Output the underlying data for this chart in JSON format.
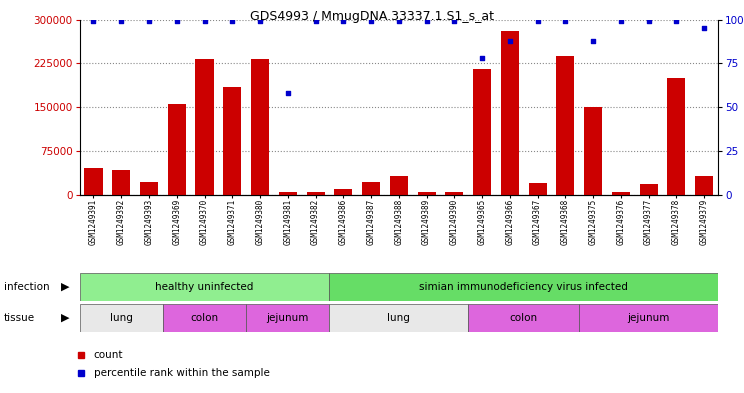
{
  "title": "GDS4993 / MmugDNA.33337.1.S1_s_at",
  "samples": [
    "GSM1249391",
    "GSM1249392",
    "GSM1249393",
    "GSM1249369",
    "GSM1249370",
    "GSM1249371",
    "GSM1249380",
    "GSM1249381",
    "GSM1249382",
    "GSM1249386",
    "GSM1249387",
    "GSM1249388",
    "GSM1249389",
    "GSM1249390",
    "GSM1249365",
    "GSM1249366",
    "GSM1249367",
    "GSM1249368",
    "GSM1249375",
    "GSM1249376",
    "GSM1249377",
    "GSM1249378",
    "GSM1249379"
  ],
  "counts": [
    45000,
    42000,
    22000,
    155000,
    232000,
    185000,
    232000,
    4000,
    4000,
    10000,
    22000,
    32000,
    4000,
    5000,
    215000,
    280000,
    20000,
    238000,
    150000,
    5000,
    18000,
    200000,
    32000
  ],
  "percentiles": [
    99,
    99,
    99,
    99,
    99,
    99,
    99,
    58,
    99,
    99,
    99,
    99,
    99,
    99,
    78,
    88,
    99,
    99,
    88,
    99,
    99,
    99,
    95
  ],
  "bar_color": "#cc0000",
  "dot_color": "#0000cc",
  "ylim_left": [
    0,
    300000
  ],
  "ylim_right": [
    0,
    100
  ],
  "yticks_left": [
    0,
    75000,
    150000,
    225000,
    300000
  ],
  "yticks_right": [
    0,
    25,
    50,
    75,
    100
  ],
  "bg_color": "#ffffff",
  "grid_color": "#888888",
  "tick_color_left": "#cc0000",
  "tick_color_right": "#0000cc",
  "xticklabel_bg": "#d8d8d8",
  "infection_groups": [
    {
      "label": "healthy uninfected",
      "start": 0,
      "end": 8,
      "color": "#90ee90"
    },
    {
      "label": "simian immunodeficiency virus infected",
      "start": 9,
      "end": 22,
      "color": "#66dd66"
    }
  ],
  "tissue_groups": [
    {
      "label": "lung",
      "start": 0,
      "end": 2,
      "color": "#e8e8e8"
    },
    {
      "label": "colon",
      "start": 3,
      "end": 5,
      "color": "#dd66dd"
    },
    {
      "label": "jejunum",
      "start": 6,
      "end": 8,
      "color": "#dd66dd"
    },
    {
      "label": "lung",
      "start": 9,
      "end": 13,
      "color": "#e8e8e8"
    },
    {
      "label": "colon",
      "start": 14,
      "end": 17,
      "color": "#dd66dd"
    },
    {
      "label": "jejunum",
      "start": 18,
      "end": 22,
      "color": "#dd66dd"
    }
  ]
}
